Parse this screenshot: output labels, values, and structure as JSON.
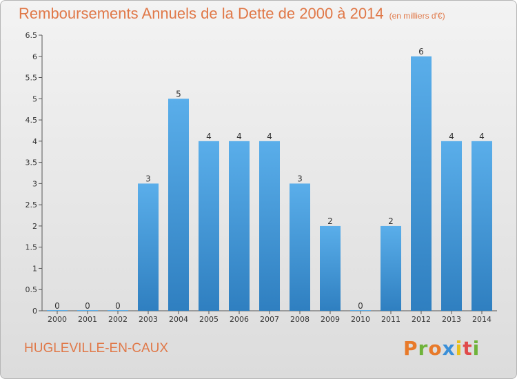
{
  "header": {
    "title": "Remboursements Annuels de la Dette de 2000 à 2014",
    "unit": "(en milliers d'€)"
  },
  "footer": {
    "city": "HUGLEVILLE-EN-CAUX",
    "logo": "Proxiti"
  },
  "colors": {
    "title": "#e07848",
    "bar_light": "#5aaeea",
    "bar_dark": "#2f7fc0",
    "logo_letters": [
      "#e87a2a",
      "#6fb33a",
      "#e87a2a",
      "#3a8fd8",
      "#e8c01a",
      "#e04a4a",
      "#6fb33a"
    ]
  },
  "chart_data": {
    "type": "bar",
    "title": "Remboursements Annuels de la Dette de 2000 à 2014",
    "categories": [
      "2000",
      "2001",
      "2002",
      "2003",
      "2004",
      "2005",
      "2006",
      "2007",
      "2008",
      "2009",
      "2010",
      "2011",
      "2012",
      "2013",
      "2014"
    ],
    "values": [
      0,
      0,
      0,
      3,
      5,
      4,
      4,
      4,
      3,
      2,
      0,
      2,
      6,
      4,
      4
    ],
    "data_labels": [
      "0",
      "0",
      "0",
      "3",
      "5",
      "4",
      "4",
      "4",
      "3",
      "2",
      "0",
      "2",
      "6",
      "4",
      "4"
    ],
    "ylim": [
      0,
      6.5
    ],
    "yticks": [
      "0",
      "0.5",
      "1",
      "1.5",
      "2",
      "2.5",
      "3",
      "3.5",
      "4",
      "4.5",
      "5",
      "5.5",
      "6",
      "6.5"
    ],
    "grid": false
  }
}
